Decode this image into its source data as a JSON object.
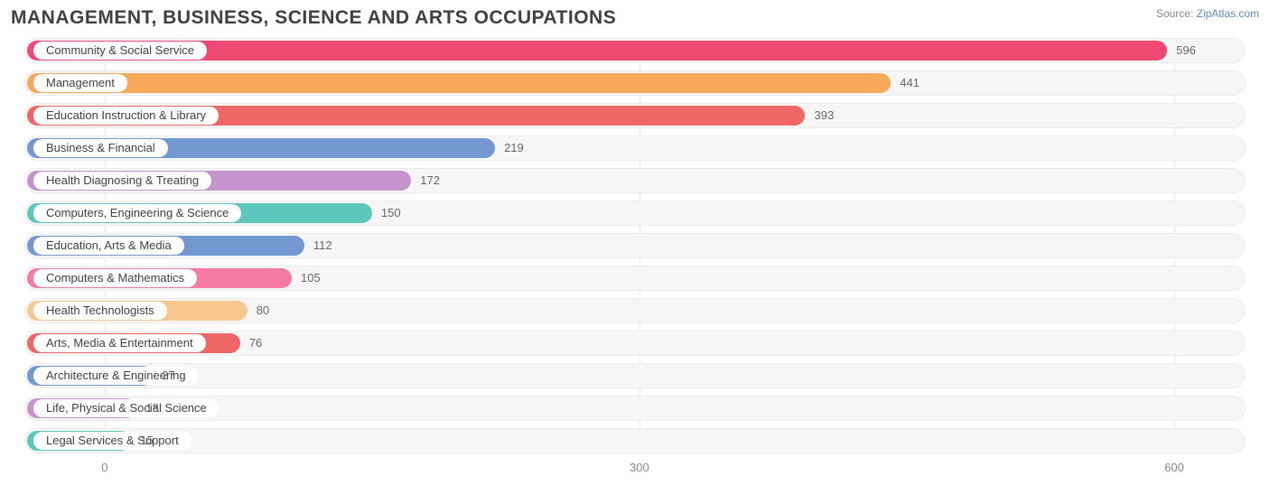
{
  "title": "MANAGEMENT, BUSINESS, SCIENCE AND ARTS OCCUPATIONS",
  "source_label": "Source:",
  "source_name": "ZipAtlas.com",
  "chart": {
    "type": "bar",
    "x_min": -45,
    "x_max": 640,
    "ticks": [
      0,
      300,
      600
    ],
    "track_bg": "#f6f6f6",
    "track_border": "#ececec",
    "grid_color": "#e5e5e5",
    "text_color": "#404040",
    "value_color": "#666666",
    "bars": [
      {
        "label": "Community & Social Service",
        "value": 596,
        "color": "#ef4872"
      },
      {
        "label": "Management",
        "value": 441,
        "color": "#f6a95a"
      },
      {
        "label": "Education Instruction & Library",
        "value": 393,
        "color": "#ef6666"
      },
      {
        "label": "Business & Financial",
        "value": 219,
        "color": "#7498d0"
      },
      {
        "label": "Health Diagnosing & Treating",
        "value": 172,
        "color": "#c693cf"
      },
      {
        "label": "Computers, Engineering & Science",
        "value": 150,
        "color": "#5ec7bd"
      },
      {
        "label": "Education, Arts & Media",
        "value": 112,
        "color": "#7498d0"
      },
      {
        "label": "Computers & Mathematics",
        "value": 105,
        "color": "#f57ba5"
      },
      {
        "label": "Health Technologists",
        "value": 80,
        "color": "#f8c98e"
      },
      {
        "label": "Arts, Media & Entertainment",
        "value": 76,
        "color": "#ef6666"
      },
      {
        "label": "Architecture & Engineering",
        "value": 27,
        "color": "#7498d0"
      },
      {
        "label": "Life, Physical & Social Science",
        "value": 18,
        "color": "#c693cf"
      },
      {
        "label": "Legal Services & Support",
        "value": 15,
        "color": "#5ec7bd"
      }
    ]
  }
}
